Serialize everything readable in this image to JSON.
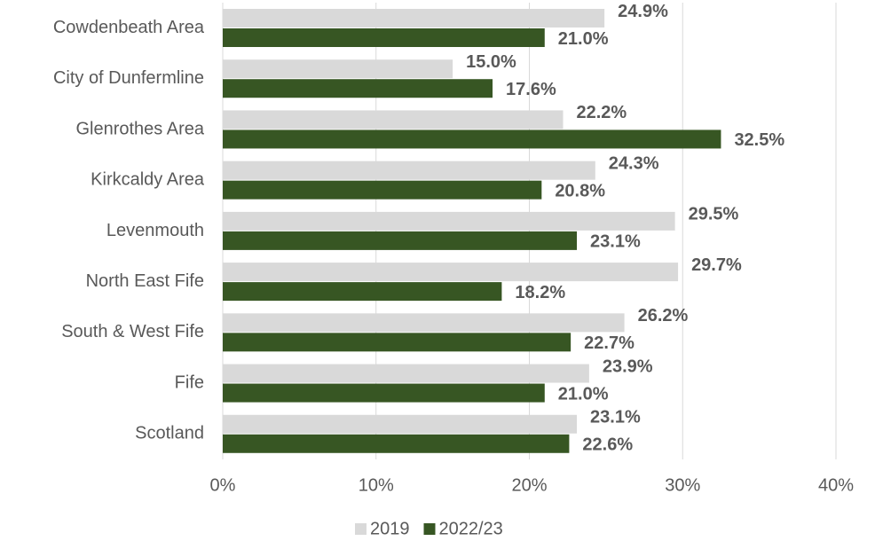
{
  "chart_data": {
    "type": "hbar",
    "categories": [
      "Cowdenbeath Area",
      "City of Dunfermline",
      "Glenrothes Area",
      "Kirkcaldy Area",
      "Levenmouth",
      "North East Fife",
      "South & West Fife",
      "Fife",
      "Scotland"
    ],
    "series": [
      {
        "name": "2019",
        "color": "#d9d9d9",
        "label_color": "#404040",
        "values": [
          24.9,
          15.0,
          22.2,
          24.3,
          29.5,
          29.7,
          26.2,
          23.9,
          23.1
        ],
        "value_labels": [
          "24.9%",
          "15.0%",
          "22.2%",
          "24.3%",
          "29.5%",
          "29.7%",
          "26.2%",
          "23.9%",
          "23.1%"
        ]
      },
      {
        "name": "2022/23",
        "color": "#375623",
        "label_color": "#375623",
        "values": [
          21.0,
          17.6,
          32.5,
          20.8,
          23.1,
          18.2,
          22.7,
          21.0,
          22.6
        ],
        "value_labels": [
          "21.0%",
          "17.6%",
          "32.5%",
          "20.8%",
          "23.1%",
          "18.2%",
          "22.7%",
          "21.0%",
          "22.6%"
        ]
      }
    ],
    "xlim": [
      0,
      40
    ],
    "xticks": [
      {
        "value": 0,
        "label": "0%"
      },
      {
        "value": 10,
        "label": "10%"
      },
      {
        "value": 20,
        "label": "20%"
      },
      {
        "value": 30,
        "label": "30%"
      },
      {
        "value": 40,
        "label": "40%"
      }
    ],
    "grid": true,
    "legend": "bottom"
  }
}
